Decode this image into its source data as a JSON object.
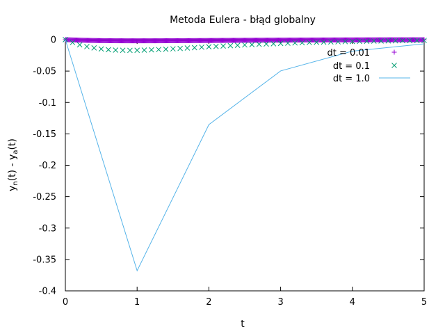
{
  "chart_data": {
    "type": "scatter",
    "title": "Metoda Eulera - błąd globalny",
    "xlabel": "t",
    "ylabel": {
      "parts": [
        {
          "text": "y",
          "sub": false
        },
        {
          "text": "n",
          "sub": true
        },
        {
          "text": "(t) - y",
          "sub": false
        },
        {
          "text": "a",
          "sub": true
        },
        {
          "text": "(t)",
          "sub": false
        }
      ]
    },
    "xlim": [
      0,
      5
    ],
    "ylim": [
      -0.4,
      0
    ],
    "xticks": [
      0,
      1,
      2,
      3,
      4,
      5
    ],
    "xtick_labels": [
      "0",
      "1",
      "2",
      "3",
      "4",
      "5"
    ],
    "yticks": [
      0,
      -0.05,
      -0.1,
      -0.15,
      -0.2,
      -0.25,
      -0.3,
      -0.35,
      -0.4
    ],
    "ytick_labels": [
      "0",
      "-0.05",
      "-0.1",
      "-0.15",
      "-0.2",
      "-0.25",
      "-0.3",
      "-0.35",
      "-0.4"
    ],
    "grid": false,
    "legend_position": "top-right",
    "series": [
      {
        "name": "dt = 0.01",
        "marker": "plus",
        "color": "#9400d3",
        "x_start": 0,
        "x_end": 5,
        "x_step": 0.01,
        "y_min": -0.0018,
        "y_min_at": 1
      },
      {
        "name": "dt = 0.1",
        "marker": "cross",
        "color": "#009e73",
        "x": [
          0.0,
          0.1,
          0.2,
          0.3,
          0.4,
          0.5,
          0.6,
          0.7,
          0.8,
          0.9,
          1.0,
          1.1,
          1.2,
          1.3,
          1.4,
          1.5,
          1.6,
          1.7,
          1.8,
          1.9,
          2.0,
          2.1,
          2.2,
          2.3,
          2.4,
          2.5,
          2.6,
          2.7,
          2.8,
          2.9,
          3.0,
          3.1,
          3.2,
          3.3,
          3.4,
          3.5,
          3.6,
          3.7,
          3.8,
          3.9,
          4.0,
          4.1,
          4.2,
          4.3,
          4.4,
          4.5,
          4.6,
          4.7,
          4.8,
          4.9,
          5.0
        ],
        "y": [
          0.0,
          -0.0045,
          -0.0082,
          -0.011,
          -0.0132,
          -0.0148,
          -0.0159,
          -0.0166,
          -0.0169,
          -0.017,
          -0.0169,
          -0.0166,
          -0.0162,
          -0.0157,
          -0.0152,
          -0.0146,
          -0.014,
          -0.0133,
          -0.0127,
          -0.012,
          -0.0114,
          -0.0108,
          -0.0101,
          -0.0096,
          -0.009,
          -0.0084,
          -0.0079,
          -0.0074,
          -0.0069,
          -0.0065,
          -0.006,
          -0.0056,
          -0.0052,
          -0.0049,
          -0.0045,
          -0.0042,
          -0.0039,
          -0.0036,
          -0.0034,
          -0.0031,
          -0.0029,
          -0.0027,
          -0.0025,
          -0.0023,
          -0.0021,
          -0.0019,
          -0.0018,
          -0.0016,
          -0.0015,
          -0.0014,
          -0.0013
        ]
      },
      {
        "name": "dt = 1.0",
        "marker": "line",
        "color": "#56b4e9",
        "x": [
          0,
          1,
          2,
          3,
          4,
          5
        ],
        "y": [
          0,
          -0.3679,
          -0.1353,
          -0.0498,
          -0.0183,
          -0.0067
        ]
      }
    ]
  }
}
